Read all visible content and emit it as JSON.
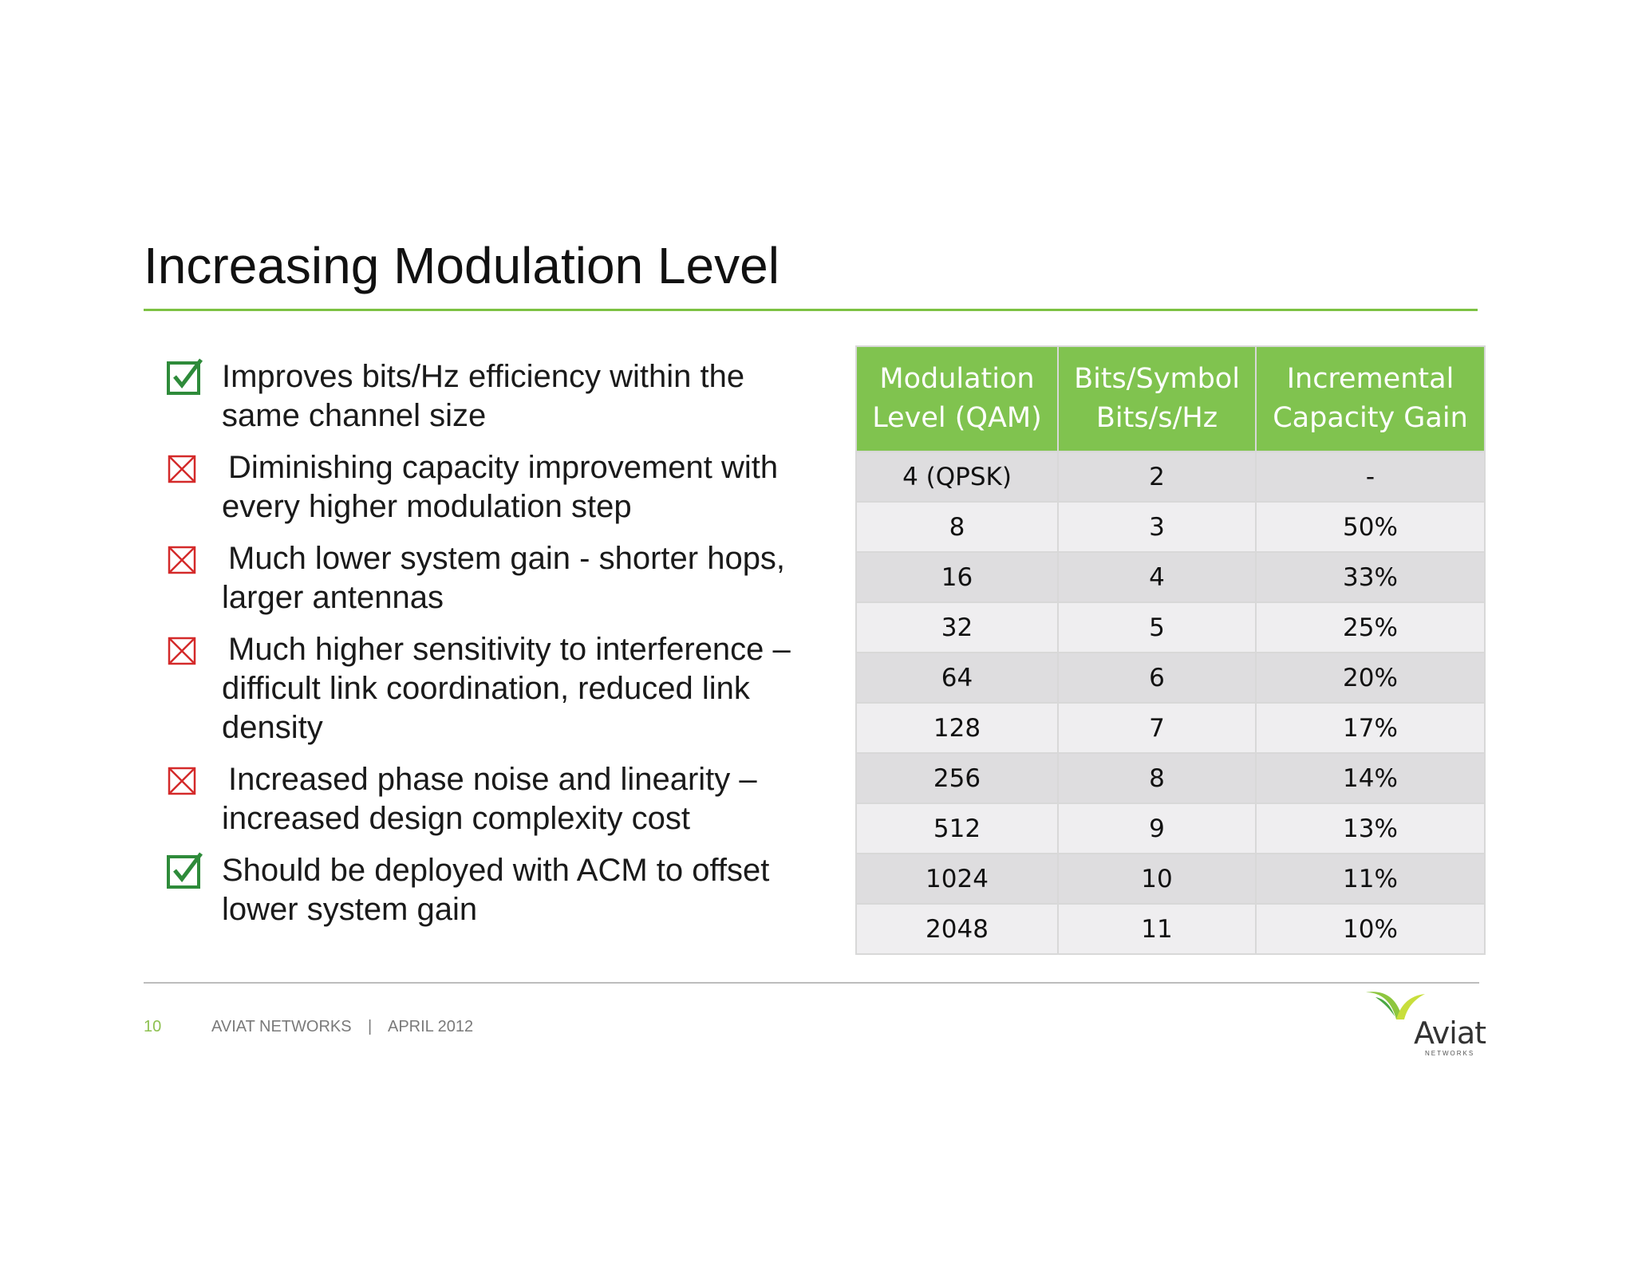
{
  "slide": {
    "title": "Increasing Modulation Level"
  },
  "bullets": [
    {
      "type": "check",
      "icon": "check-box-icon",
      "text": "Improves bits/Hz efficiency within the same channel size"
    },
    {
      "type": "cross",
      "icon": "cross-box-icon",
      "text": "Diminishing capacity improvement with every higher modulation step"
    },
    {
      "type": "cross",
      "icon": "cross-box-icon",
      "text": "Much lower system gain - shorter hops, larger antennas"
    },
    {
      "type": "cross",
      "icon": "cross-box-icon",
      "text": "Much higher sensitivity to interference – difficult link coordination, reduced link density"
    },
    {
      "type": "cross",
      "icon": "cross-box-icon",
      "text": "Increased phase noise and linearity – increased design complexity cost"
    },
    {
      "type": "check",
      "icon": "check-box-icon",
      "text": "Should be deployed with ACM to offset lower system gain"
    }
  ],
  "table": {
    "headers": [
      [
        "Modulation",
        "Level (QAM)"
      ],
      [
        "Bits/Symbol",
        "Bits/s/Hz"
      ],
      [
        "Incremental",
        "Capacity Gain"
      ]
    ],
    "rows": [
      [
        "4 (QPSK)",
        "2",
        "-"
      ],
      [
        "8",
        "3",
        "50%"
      ],
      [
        "16",
        "4",
        "33%"
      ],
      [
        "32",
        "5",
        "25%"
      ],
      [
        "64",
        "6",
        "20%"
      ],
      [
        "128",
        "7",
        "17%"
      ],
      [
        "256",
        "8",
        "14%"
      ],
      [
        "512",
        "9",
        "13%"
      ],
      [
        "1024",
        "10",
        "11%"
      ],
      [
        "2048",
        "11",
        "10%"
      ]
    ]
  },
  "footer": {
    "page_number": "10",
    "company": "AVIAT NETWORKS",
    "separator": "|",
    "date": "APRIL 2012"
  },
  "logo": {
    "brand": "Aviat",
    "subtitle": "NETWORKS"
  },
  "colors": {
    "accent_green": "#7dc243",
    "check_green": "#2e8b3a",
    "cross_red": "#d42a2a",
    "header_green": "#80c34f"
  }
}
